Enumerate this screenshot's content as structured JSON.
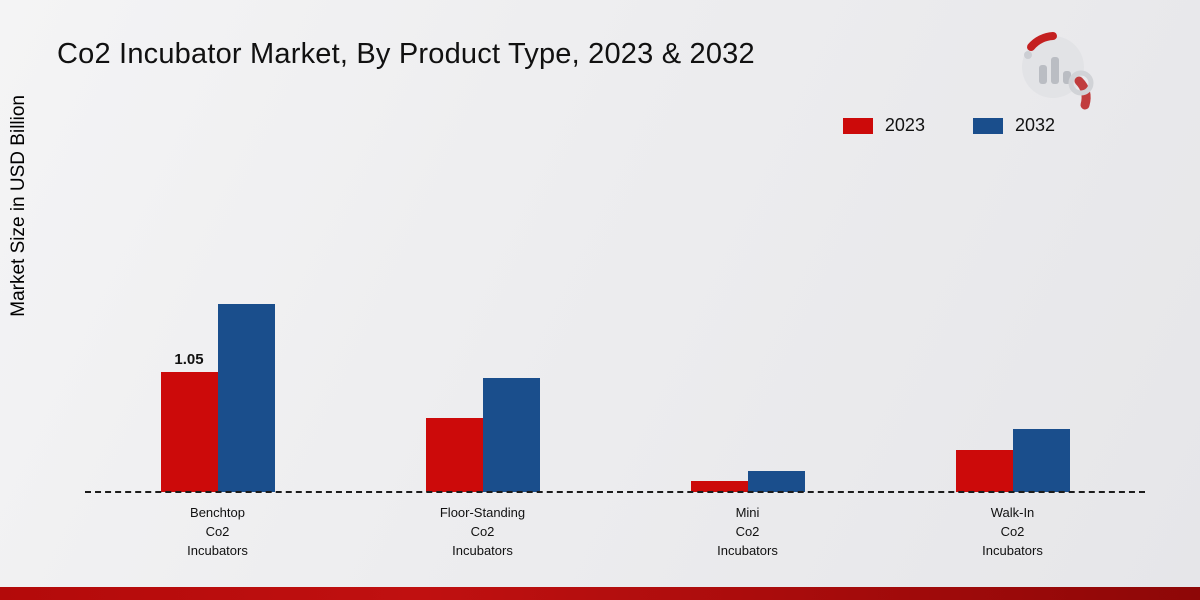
{
  "title": "Co2 Incubator Market, By Product Type, 2023 & 2032",
  "y_axis_label": "Market Size in USD Billion",
  "colors": {
    "series_2023": "#cc0a0a",
    "series_2032": "#1a4e8c",
    "footer_strip": "#a30808"
  },
  "legend": {
    "position": "top-right",
    "items": [
      {
        "label": "2023",
        "color": "#cc0a0a"
      },
      {
        "label": "2032",
        "color": "#1a4e8c"
      }
    ]
  },
  "chart_data": {
    "type": "bar",
    "title": "Co2 Incubator Market, By Product Type, 2023 & 2032",
    "xlabel": "",
    "ylabel": "Market Size in USD Billion",
    "ylim": [
      0,
      1.8
    ],
    "grid": false,
    "legend_position": "top-right",
    "categories": [
      "Benchtop\nCo2\nIncubators",
      "Floor-Standing\nCo2\nIncubators",
      "Mini\nCo2\nIncubators",
      "Walk-In\nCo2\nIncubators"
    ],
    "series": [
      {
        "name": "2023",
        "color": "#cc0a0a",
        "values": [
          1.05,
          0.65,
          0.1,
          0.37
        ]
      },
      {
        "name": "2032",
        "color": "#1a4e8c",
        "values": [
          1.65,
          1.0,
          0.18,
          0.55
        ]
      }
    ],
    "bar_labels": [
      {
        "series": 0,
        "category": 0,
        "text": "1.05"
      }
    ]
  }
}
